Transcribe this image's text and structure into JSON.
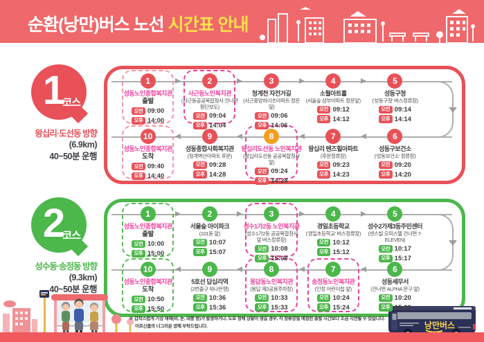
{
  "header": {
    "title_main": "순환(낭만)버스 노선",
    "title_accent": "시간표 안내"
  },
  "labels": {
    "am": "오전",
    "pm": "오후"
  },
  "colors": {
    "header_bg": "#ef686b",
    "accent_yellow": "#ffe14d",
    "course1_red": "#e85158",
    "course2_green": "#4cb74b",
    "highlight_pink": "#ee3f9b",
    "stop8_orange": "#f49d20",
    "connector_gray": "#aeaeae",
    "text_dark": "#3a3a3a",
    "bus_navy": "#2b3055",
    "footer_strip": "#f05a5f"
  },
  "courses": [
    {
      "number": "1",
      "course_suffix": "코스",
      "direction": "왕십리·도선동 방향",
      "distance": "(6.9km)",
      "duration": "40~50분 운행",
      "stops": [
        {
          "num": "1",
          "name": "성동노인종합복지관",
          "sub": "출발",
          "am": "09:00",
          "pm": "14:00",
          "name_style": "pink",
          "box": "lightpink",
          "circle": "red",
          "sub_bold": true
        },
        {
          "num": "2",
          "name": "사근동노인복지관",
          "sub": "(사근동공공복합청사 건너편 횡단보도)",
          "am": "09:04",
          "pm": "14:04",
          "name_style": "pink",
          "box": "magenta",
          "circle": "red"
        },
        {
          "num": "3",
          "name": "청계천 자전거길",
          "sub": "(사근중앙하이츠아파트 정문 앞)",
          "am": "09:06",
          "pm": "14:06",
          "name_style": "dark",
          "box": "none",
          "circle": "red"
        },
        {
          "num": "4",
          "name": "소월아트홀",
          "sub": "(서울숲 삼부아파트 정문앞)",
          "am": "09:12",
          "pm": "14:12",
          "name_style": "dark",
          "box": "none",
          "circle": "red"
        },
        {
          "num": "5",
          "name": "성동구청",
          "sub": "('성동구청' 버스정류장)",
          "am": "09:14",
          "pm": "14:14",
          "name_style": "dark",
          "box": "none",
          "circle": "red"
        },
        {
          "num": "6",
          "name": "성동구보건소",
          "sub": "('성동보건소' 정류장)",
          "am": "09:20",
          "pm": "14:20",
          "name_style": "dark",
          "box": "none",
          "circle": "red"
        },
        {
          "num": "7",
          "name": "왕십리 텐즈힐아파트",
          "sub": "(후문정류장)",
          "am": "09:23",
          "pm": "14:23",
          "name_style": "dark",
          "box": "none",
          "circle": "red"
        },
        {
          "num": "8",
          "name": "왕십리도선동 노인복지관",
          "sub": "(왕십리도선동 공공복합청사 앞)",
          "am": "09:24",
          "pm": "14:24",
          "name_style": "pink",
          "box": "magenta",
          "circle": "orange"
        },
        {
          "num": "9",
          "name": "성동종합사회복지관",
          "sub": "(청계벽산아파트 후문)",
          "am": "09:28",
          "pm": "14:28",
          "name_style": "dark",
          "box": "none",
          "circle": "red"
        },
        {
          "num": "10",
          "name": "성동노인종합복지관",
          "sub": "도착",
          "am": "09:40",
          "pm": "14:40",
          "name_style": "pink",
          "box": "lightpink",
          "circle": "red",
          "sub_bold": true
        }
      ]
    },
    {
      "number": "2",
      "course_suffix": "코스",
      "direction": "성수동·송정동 방향",
      "distance": "(9.3km)",
      "duration": "40~50분 운행",
      "stops": [
        {
          "num": "1",
          "name": "성동노인종합복지관",
          "sub": "출발",
          "am": "10:00",
          "pm": "15:00",
          "name_style": "pink",
          "box": "green",
          "circle": "green",
          "sub_bold": true
        },
        {
          "num": "2",
          "name": "서울숲 아이파크",
          "sub": "(101동 앞)",
          "am": "10:07",
          "pm": "15:07",
          "name_style": "dark",
          "box": "none",
          "circle": "green"
        },
        {
          "num": "3",
          "name": "성수1가2동 노인복지관",
          "sub": "(성수1가2동 공공복합청사 앞 버스정류장)",
          "am": "10:08",
          "pm": "15:08",
          "name_style": "pink",
          "box": "magenta",
          "circle": "green"
        },
        {
          "num": "4",
          "name": "경일초등학교",
          "sub": "('경일초등학교' 버스정류장)",
          "am": "10:12",
          "pm": "15:12",
          "name_style": "dark",
          "box": "none",
          "circle": "green"
        },
        {
          "num": "5",
          "name": "성수2가제3동주민센터",
          "sub": "(센스빌 오피스텔 건너편 7-ELEVEN)",
          "am": "10:17",
          "pm": "15:17",
          "name_style": "dark",
          "box": "none",
          "circle": "green"
        },
        {
          "num": "6",
          "name": "성동세무서",
          "sub": "(건너편 ALPHA 문구 앞)",
          "am": "10:20",
          "pm": "15:20",
          "name_style": "dark",
          "box": "none",
          "circle": "green"
        },
        {
          "num": "7",
          "name": "송정동노인복지관",
          "sub": "(인정 어린이집 앞)",
          "am": "10:24",
          "pm": "15:24",
          "name_style": "pink",
          "box": "magenta",
          "circle": "green"
        },
        {
          "num": "8",
          "name": "용답동노인복지관",
          "sub": "(용답 제2공용주차장)",
          "am": "10:33",
          "pm": "15:33",
          "name_style": "pink",
          "box": "magenta",
          "circle": "green"
        },
        {
          "num": "9",
          "name": "5호선 답십리역",
          "sub": "(2번출구 하나은행)",
          "am": "10:36",
          "pm": "15:36",
          "name_style": "dark",
          "box": "none",
          "circle": "green"
        },
        {
          "num": "10",
          "name": "성동노인종합복지관",
          "sub": "도착",
          "am": "10:50",
          "pm": "15:50",
          "name_style": "pink",
          "box": "green",
          "circle": "green",
          "sub_bold": true
        }
      ]
    }
  ],
  "footnote": {
    "line1": "※ 갑작스럽게 기상 재해(비, 눈, 태풍 등)가 발생하거나, 도로 정체 상황이 생길 경우, 각 정류장별 예정된 출발 시간보다 조금 지연될 수 있습니다.",
    "line2": "어르신들의 너그러운 양해 부탁드립니다."
  },
  "bus_label": "낭만버스"
}
